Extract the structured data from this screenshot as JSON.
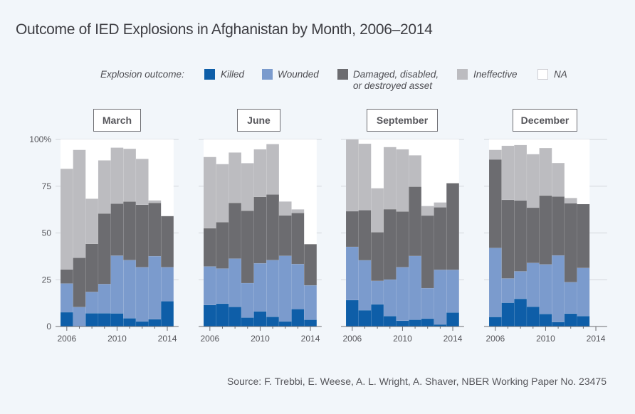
{
  "title": "Outcome of IED Explosions in Afghanistan by Month, 2006–2014",
  "legend": {
    "label": "Explosion outcome:",
    "items": [
      {
        "name": "Killed",
        "color": "#0e5ea8"
      },
      {
        "name": "Wounded",
        "color": "#7b9bcd"
      },
      {
        "name": "Damaged, disabled,",
        "name2": "or destroyed asset",
        "color": "#6c6c70"
      },
      {
        "name": "Ineffective",
        "color": "#bcbcc0"
      },
      {
        "name": "NA",
        "color": "#ffffff"
      }
    ]
  },
  "source": "Source: F. Trebbi, E. Weese, A. L. Wright, A. Shaver, NBER Working Paper No. 23475",
  "chart_data": {
    "type": "bar",
    "stacked": true,
    "title": "Outcome of IED Explosions in Afghanistan by Month, 2006–2014",
    "xlabel": "",
    "ylabel": "",
    "ylim": [
      0,
      100
    ],
    "yticks": [
      "0",
      "25",
      "50",
      "75",
      "100%"
    ],
    "ytick_values": [
      0,
      25,
      50,
      75,
      100
    ],
    "xticks": [
      "2006",
      "2010",
      "2014"
    ],
    "grid": true,
    "legend_position": "top",
    "series_names": [
      "Killed",
      "Wounded",
      "Damaged, disabled, or destroyed asset",
      "Ineffective",
      "NA"
    ],
    "panels": [
      {
        "name": "March",
        "years": [
          2006,
          2007,
          2008,
          2009,
          2010,
          2011,
          2012,
          2013,
          2014
        ],
        "series": [
          {
            "name": "Killed",
            "values": [
              7.6,
              0,
              7.1,
              7.1,
              7.0,
              4.4,
              2.7,
              3.9,
              13.5
            ]
          },
          {
            "name": "Wounded",
            "values": [
              15.4,
              10.4,
              11.4,
              15.6,
              30.9,
              31.1,
              29.0,
              33.7,
              18.2
            ]
          },
          {
            "name": "Damaged, disabled, or destroyed asset",
            "values": [
              7.5,
              26.3,
              25.7,
              37.7,
              27.8,
              31.3,
              33.4,
              28.5,
              27.3
            ]
          },
          {
            "name": "Ineffective",
            "values": [
              53.8,
              57.7,
              24.1,
              28.4,
              29.9,
              28.2,
              24.5,
              1.3,
              0
            ]
          }
        ]
      },
      {
        "name": "June",
        "years": [
          2006,
          2007,
          2008,
          2009,
          2010,
          2011,
          2012,
          2013,
          2014
        ],
        "series": [
          {
            "name": "Killed",
            "values": [
              11.5,
              12.2,
              10.5,
              4.8,
              8.1,
              5.2,
              2.7,
              9.3,
              3.6
            ]
          },
          {
            "name": "Wounded",
            "values": [
              20.6,
              18.8,
              25.8,
              18.4,
              25.7,
              30.3,
              35.1,
              24.1,
              18.4
            ]
          },
          {
            "name": "Damaged, disabled, or destroyed asset",
            "values": [
              20.4,
              24.8,
              29.8,
              38.7,
              35.5,
              35.1,
              21.6,
              27.3,
              22.0
            ]
          },
          {
            "name": "Ineffective",
            "values": [
              38.1,
              31.0,
              26.9,
              25.4,
              25.4,
              26.9,
              7.4,
              1.9,
              0
            ]
          }
        ]
      },
      {
        "name": "September",
        "years": [
          2006,
          2007,
          2008,
          2009,
          2010,
          2011,
          2012,
          2013,
          2014
        ],
        "series": [
          {
            "name": "Killed",
            "values": [
              14.1,
              8.7,
              11.8,
              5.6,
              3.1,
              3.6,
              4.2,
              1.1,
              7.5
            ]
          },
          {
            "name": "Wounded",
            "values": [
              28.5,
              26.7,
              12.6,
              19.5,
              28.6,
              34.1,
              16.3,
              29.2,
              22.8
            ]
          },
          {
            "name": "Damaged, disabled, or destroyed asset",
            "values": [
              19.0,
              26.8,
              26.0,
              37.6,
              29.8,
              37.0,
              38.8,
              33.4,
              46.3
            ]
          },
          {
            "name": "Ineffective",
            "values": [
              38.4,
              35.5,
              23.5,
              33.2,
              33.2,
              16.8,
              5.1,
              2.6,
              0
            ]
          }
        ]
      },
      {
        "name": "December",
        "years": [
          2006,
          2007,
          2008,
          2009,
          2010,
          2011,
          2012,
          2013
        ],
        "series": [
          {
            "name": "Killed",
            "values": [
              5.1,
              12.7,
              14.8,
              10.6,
              6.7,
              2.4,
              6.9,
              5.6
            ]
          },
          {
            "name": "Wounded",
            "values": [
              36.9,
              13.0,
              14.7,
              23.4,
              26.5,
              35.6,
              16.8,
              25.7
            ]
          },
          {
            "name": "Damaged, disabled, or destroyed asset",
            "values": [
              47.3,
              42.0,
              37.9,
              29.5,
              36.8,
              31.5,
              42.2,
              34.1
            ]
          },
          {
            "name": "Ineffective",
            "values": [
              5.1,
              28.9,
              29.6,
              28.6,
              25.4,
              17.9,
              2.8,
              0
            ]
          }
        ]
      }
    ]
  }
}
